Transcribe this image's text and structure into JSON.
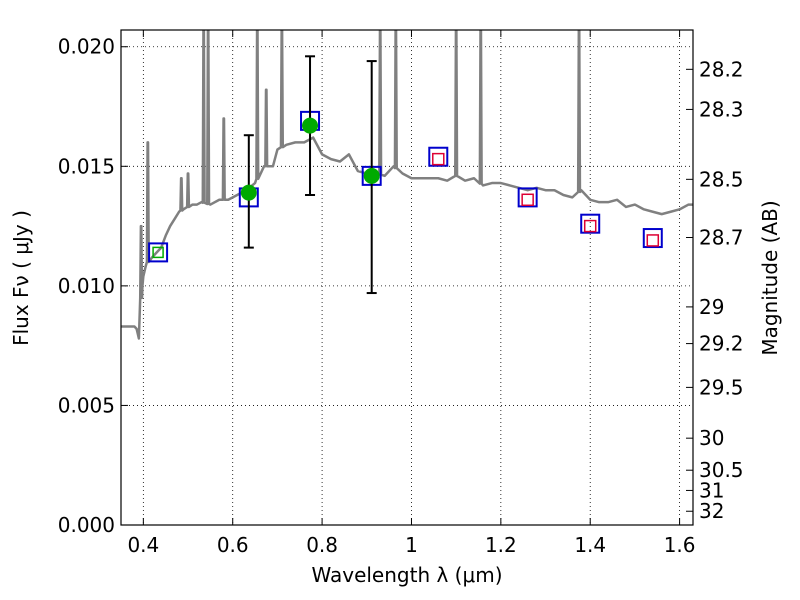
{
  "chart_data": {
    "type": "scatter",
    "xlabel": "Wavelength  λ (μm)",
    "ylabel": "Flux  Fν  ( μJy )",
    "ylabel_right": "Magnitude (AB)",
    "xlim": [
      0.35,
      1.63
    ],
    "ylim": [
      0.0,
      0.0207
    ],
    "grid": true,
    "x_ticks": [
      0.4,
      0.6,
      0.8,
      1.0,
      1.2,
      1.4,
      1.6
    ],
    "x_tick_labels": [
      "0.4",
      "0.6",
      "0.8",
      "1",
      "1.2",
      "1.4",
      "1.6"
    ],
    "y_ticks": [
      0.0,
      0.005,
      0.01,
      0.015,
      0.02
    ],
    "y_tick_labels": [
      "0.000",
      "0.005",
      "0.010",
      "0.015",
      "0.020"
    ],
    "mag_ticks": [
      28.2,
      28.3,
      28.5,
      28.7,
      29,
      29.2,
      29.5,
      30,
      30.5,
      31,
      32
    ],
    "mag_tick_labels": [
      "28.2",
      "28.3",
      "28.5",
      "28.7",
      "29",
      "29.2",
      "29.5",
      "30",
      "30.5",
      "31",
      "32"
    ],
    "colors": {
      "model_line": "#808080",
      "observed": "#00aa00",
      "model_box": "#0000cc",
      "predicted": "#dd0033"
    },
    "model_spectrum": {
      "name": "",
      "x": [
        0.35,
        0.37,
        0.38,
        0.385,
        0.39,
        0.395,
        0.398,
        0.4,
        0.405,
        0.41,
        0.42,
        0.43,
        0.44,
        0.45,
        0.46,
        0.47,
        0.48,
        0.49,
        0.5,
        0.51,
        0.52,
        0.53,
        0.55,
        0.57,
        0.59,
        0.61,
        0.63,
        0.65,
        0.67,
        0.69,
        0.7,
        0.72,
        0.74,
        0.76,
        0.78,
        0.8,
        0.82,
        0.84,
        0.86,
        0.88,
        0.9,
        0.92,
        0.94,
        0.96,
        0.98,
        1.0,
        1.02,
        1.04,
        1.06,
        1.08,
        1.1,
        1.12,
        1.14,
        1.16,
        1.18,
        1.2,
        1.22,
        1.24,
        1.26,
        1.28,
        1.3,
        1.32,
        1.34,
        1.36,
        1.38,
        1.4,
        1.42,
        1.44,
        1.46,
        1.48,
        1.5,
        1.52,
        1.54,
        1.56,
        1.58,
        1.6,
        1.62,
        1.63
      ],
      "y": [
        0.0083,
        0.0083,
        0.0083,
        0.0082,
        0.0078,
        0.0095,
        0.01,
        0.0104,
        0.0108,
        0.011,
        0.0112,
        0.0114,
        0.0116,
        0.0121,
        0.0125,
        0.0128,
        0.0131,
        0.0132,
        0.0133,
        0.0134,
        0.0134,
        0.0135,
        0.0134,
        0.0136,
        0.0136,
        0.0138,
        0.014,
        0.0143,
        0.015,
        0.015,
        0.0157,
        0.0159,
        0.016,
        0.016,
        0.0162,
        0.0155,
        0.0153,
        0.0152,
        0.0155,
        0.0148,
        0.0147,
        0.0147,
        0.0146,
        0.015,
        0.0147,
        0.0145,
        0.0145,
        0.0145,
        0.0145,
        0.0144,
        0.0146,
        0.0144,
        0.0145,
        0.0142,
        0.0143,
        0.0143,
        0.0142,
        0.0141,
        0.014,
        0.0141,
        0.014,
        0.014,
        0.0138,
        0.0137,
        0.014,
        0.0136,
        0.0135,
        0.0135,
        0.0136,
        0.0133,
        0.0134,
        0.0132,
        0.0131,
        0.013,
        0.0131,
        0.0132,
        0.0134,
        0.0134
      ]
    },
    "emission_lines": [
      {
        "x": 0.395,
        "peak": 0.0125
      },
      {
        "x": 0.41,
        "peak": 0.016
      },
      {
        "x": 0.485,
        "peak": 0.0145
      },
      {
        "x": 0.5,
        "peak": 0.0147
      },
      {
        "x": 0.535,
        "peak": 0.0207
      },
      {
        "x": 0.545,
        "peak": 0.0207
      },
      {
        "x": 0.58,
        "peak": 0.017
      },
      {
        "x": 0.655,
        "peak": 0.0207
      },
      {
        "x": 0.675,
        "peak": 0.0182
      },
      {
        "x": 0.71,
        "peak": 0.0207
      },
      {
        "x": 0.93,
        "peak": 0.0207
      },
      {
        "x": 0.965,
        "peak": 0.0207
      },
      {
        "x": 1.1,
        "peak": 0.0207
      },
      {
        "x": 1.155,
        "peak": 0.0207
      },
      {
        "x": 1.375,
        "peak": 0.0207
      }
    ],
    "observed_points": {
      "name": "",
      "x": [
        0.636,
        0.773,
        0.911
      ],
      "y": [
        0.0139,
        0.0167,
        0.0146
      ],
      "err_lo": [
        0.0116,
        0.0138,
        0.0097
      ],
      "err_hi": [
        0.0163,
        0.0196,
        0.0194
      ]
    },
    "model_boxes": {
      "name": "",
      "x": [
        0.433,
        0.636,
        0.773,
        0.911,
        1.06,
        1.26,
        1.4,
        1.54
      ],
      "y": [
        0.0114,
        0.0137,
        0.0169,
        0.0146,
        0.0154,
        0.0137,
        0.0126,
        0.012
      ]
    },
    "predicted_points": {
      "name": "",
      "x": [
        1.06,
        1.26,
        1.4,
        1.54
      ],
      "y": [
        0.0153,
        0.0136,
        0.0125,
        0.0119
      ]
    }
  }
}
